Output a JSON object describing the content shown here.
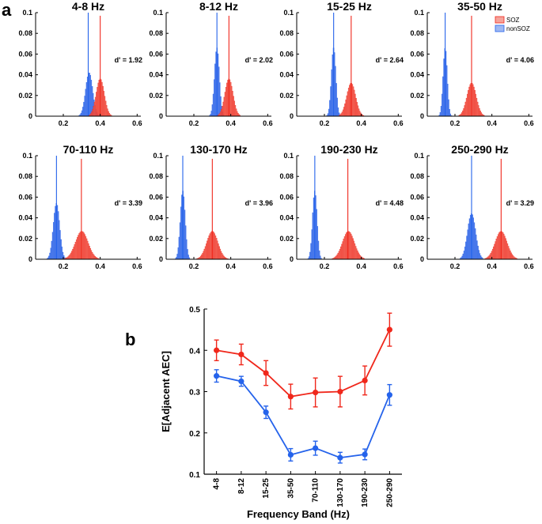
{
  "panel_labels": {
    "a": "a",
    "b": "b"
  },
  "colors": {
    "soz": "#f0271b",
    "nonsoz": "#2563eb",
    "soz_fill": "#f05a4c",
    "nonsoz_fill": "#3f6fe8"
  },
  "chart_data": [
    {
      "type": "histogram-grid",
      "panel": "a",
      "xlim": [
        0.05,
        0.62
      ],
      "ylim": [
        0,
        0.1
      ],
      "xticks": [
        "0.2",
        "0.4",
        "0.6"
      ],
      "xtick_values": [
        0.2,
        0.4,
        0.6
      ],
      "yticks": [
        "0",
        "0.02",
        "0.04",
        "0.06",
        "0.08",
        "0.1"
      ],
      "ytick_values": [
        0,
        0.02,
        0.04,
        0.06,
        0.08,
        0.1
      ],
      "legend": {
        "soz": "SOZ",
        "nonsoz": "nonSOZ",
        "placement": "top-right of last top-row subplot"
      },
      "subplots": [
        {
          "title": "4-8 Hz",
          "dprime": "d' = 1.92",
          "soz": {
            "mean": 0.4,
            "sd": 0.022,
            "peak": 0.036
          },
          "nonsoz": {
            "mean": 0.34,
            "sd": 0.019,
            "peak": 0.042
          },
          "soz_line": 0.4,
          "nonsoz_line": 0.335,
          "soz_line_top": 0.097,
          "nonsoz_line_top": 0.1
        },
        {
          "title": "8-12 Hz",
          "dprime": "d' = 2.02",
          "soz": {
            "mean": 0.39,
            "sd": 0.022,
            "peak": 0.036
          },
          "nonsoz": {
            "mean": 0.325,
            "sd": 0.013,
            "peak": 0.066
          },
          "soz_line": 0.39,
          "nonsoz_line": 0.325,
          "soz_line_top": 0.097,
          "nonsoz_line_top": 0.1
        },
        {
          "title": "15-25 Hz",
          "dprime": "d' = 2.64",
          "soz": {
            "mean": 0.345,
            "sd": 0.024,
            "peak": 0.032
          },
          "nonsoz": {
            "mean": 0.25,
            "sd": 0.012,
            "peak": 0.066
          },
          "soz_line": 0.345,
          "nonsoz_line": 0.25,
          "soz_line_top": 0.097,
          "nonsoz_line_top": 0.1
        },
        {
          "title": "35-50 Hz",
          "dprime": "d' = 4.06",
          "soz": {
            "mean": 0.29,
            "sd": 0.025,
            "peak": 0.032
          },
          "nonsoz": {
            "mean": 0.147,
            "sd": 0.011,
            "peak": 0.066
          },
          "soz_line": 0.29,
          "nonsoz_line": 0.147,
          "soz_line_top": 0.097,
          "nonsoz_line_top": 0.1
        },
        {
          "title": "70-110 Hz",
          "dprime": "d' = 3.39",
          "soz": {
            "mean": 0.3,
            "sd": 0.034,
            "peak": 0.027
          },
          "nonsoz": {
            "mean": 0.163,
            "sd": 0.017,
            "peak": 0.054
          },
          "soz_line": 0.298,
          "nonsoz_line": 0.163,
          "soz_line_top": 0.097,
          "nonsoz_line_top": 0.1
        },
        {
          "title": "130-170 Hz",
          "dprime": "d' = 3.96",
          "soz": {
            "mean": 0.3,
            "sd": 0.03,
            "peak": 0.027
          },
          "nonsoz": {
            "mean": 0.14,
            "sd": 0.013,
            "peak": 0.066
          },
          "soz_line": 0.3,
          "nonsoz_line": 0.14,
          "soz_line_top": 0.097,
          "nonsoz_line_top": 0.1
        },
        {
          "title": "190-230 Hz",
          "dprime": "d' = 4.48",
          "soz": {
            "mean": 0.33,
            "sd": 0.032,
            "peak": 0.027
          },
          "nonsoz": {
            "mean": 0.148,
            "sd": 0.012,
            "peak": 0.066
          },
          "soz_line": 0.327,
          "nonsoz_line": 0.148,
          "soz_line_top": 0.097,
          "nonsoz_line_top": 0.1
        },
        {
          "title": "250-290 Hz",
          "dprime": "d' = 3.29",
          "soz": {
            "mean": 0.45,
            "sd": 0.032,
            "peak": 0.027
          },
          "nonsoz": {
            "mean": 0.29,
            "sd": 0.022,
            "peak": 0.044
          },
          "soz_line": 0.45,
          "nonsoz_line": 0.29,
          "soz_line_top": 0.097,
          "nonsoz_line_top": 0.1
        }
      ]
    },
    {
      "type": "line",
      "panel": "b",
      "categories": [
        "4-8",
        "8-12",
        "15-25",
        "35-50",
        "70-110",
        "130-170",
        "190-230",
        "250-290"
      ],
      "xlabel": "Frequency Band (Hz)",
      "ylabel": "E[Adjacent AEC]",
      "ylim": [
        0.1,
        0.5
      ],
      "yticks": [
        "0.1",
        "0.2",
        "0.3",
        "0.4",
        "0.5"
      ],
      "ytick_values": [
        0.1,
        0.2,
        0.3,
        0.4,
        0.5
      ],
      "series": [
        {
          "name": "SOZ",
          "values": [
            0.4,
            0.39,
            0.345,
            0.288,
            0.298,
            0.3,
            0.327,
            0.45
          ],
          "errors": [
            0.025,
            0.025,
            0.03,
            0.03,
            0.035,
            0.037,
            0.035,
            0.04
          ]
        },
        {
          "name": "nonSOZ",
          "values": [
            0.338,
            0.325,
            0.25,
            0.147,
            0.163,
            0.14,
            0.148,
            0.292
          ],
          "errors": [
            0.015,
            0.012,
            0.015,
            0.015,
            0.017,
            0.013,
            0.013,
            0.025
          ]
        }
      ]
    }
  ]
}
